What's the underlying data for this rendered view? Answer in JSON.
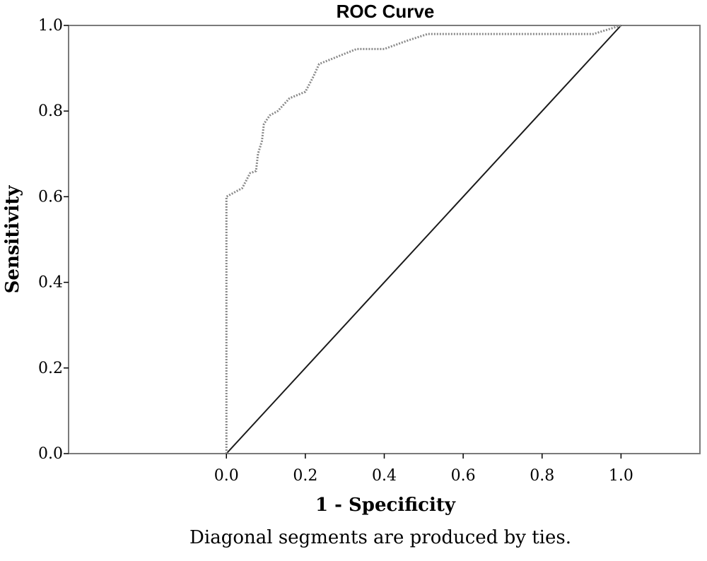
{
  "chart_data": {
    "type": "line",
    "title": "ROC Curve",
    "xlabel": "1 - Specificity",
    "ylabel": "Sensitivity",
    "footnote": "Diagonal segments are produced by ties.",
    "xlim": [
      -0.4,
      1.2
    ],
    "ylim": [
      0.0,
      1.0
    ],
    "xticks": [
      "0.0",
      "0.2",
      "0.4",
      "0.6",
      "0.8",
      "1.0"
    ],
    "yticks": [
      "0.0",
      "0.2",
      "0.4",
      "0.6",
      "0.8",
      "1.0"
    ],
    "grid": false,
    "colors": {
      "roc": "#8a8a8a",
      "reference": "#1a1a1a",
      "frame": "#7a7a7a",
      "plot_background": "#ffffff"
    },
    "series": [
      {
        "style": "dotted",
        "points": [
          {
            "x": 0.0,
            "y": 0.0
          },
          {
            "x": 0.0,
            "y": 0.6
          },
          {
            "x": 0.04,
            "y": 0.62
          },
          {
            "x": 0.06,
            "y": 0.655
          },
          {
            "x": 0.075,
            "y": 0.66
          },
          {
            "x": 0.08,
            "y": 0.7
          },
          {
            "x": 0.09,
            "y": 0.73
          },
          {
            "x": 0.095,
            "y": 0.77
          },
          {
            "x": 0.11,
            "y": 0.79
          },
          {
            "x": 0.13,
            "y": 0.8
          },
          {
            "x": 0.16,
            "y": 0.83
          },
          {
            "x": 0.2,
            "y": 0.845
          },
          {
            "x": 0.22,
            "y": 0.88
          },
          {
            "x": 0.235,
            "y": 0.91
          },
          {
            "x": 0.33,
            "y": 0.945
          },
          {
            "x": 0.4,
            "y": 0.945
          },
          {
            "x": 0.46,
            "y": 0.965
          },
          {
            "x": 0.51,
            "y": 0.98
          },
          {
            "x": 0.93,
            "y": 0.98
          },
          {
            "x": 1.0,
            "y": 1.0
          }
        ]
      },
      {
        "style": "solid",
        "points": [
          {
            "x": 0.0,
            "y": 0.0
          },
          {
            "x": 1.0,
            "y": 1.0
          }
        ]
      }
    ]
  }
}
